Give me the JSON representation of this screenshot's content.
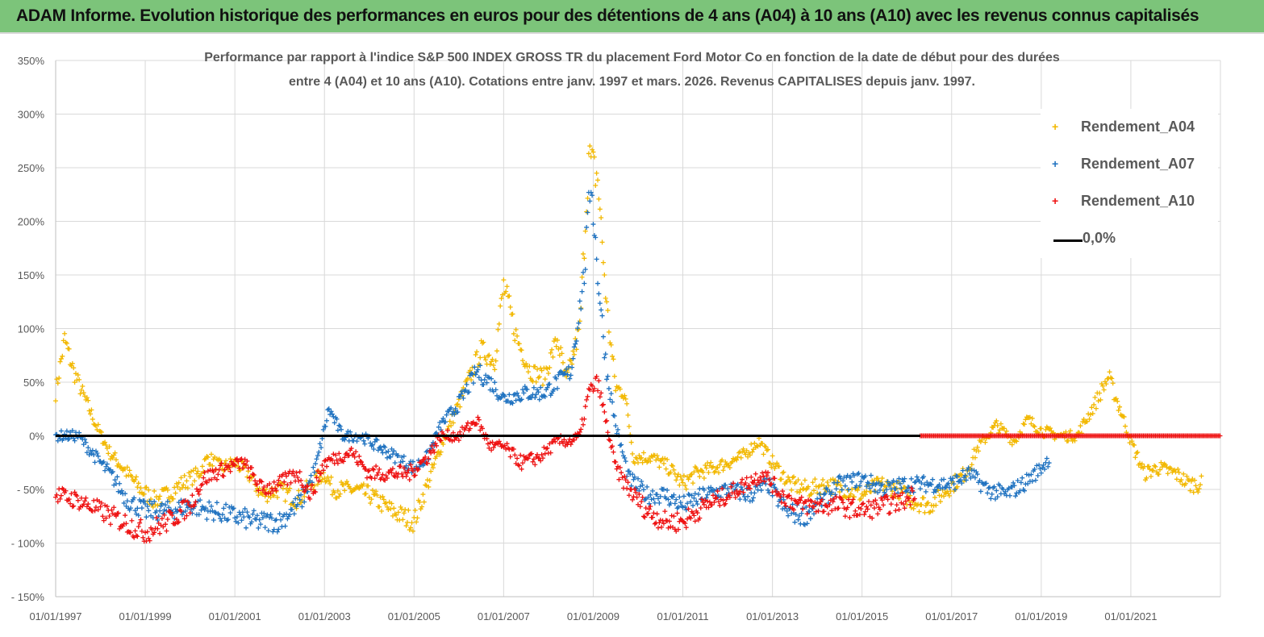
{
  "header": {
    "title": "ADAM Informe. Evolution historique des performances en euros pour des détentions de 4 ans (A04) à 10 ans (A10) avec les revenus connus capitalisés"
  },
  "chart_data": {
    "type": "scatter",
    "title_line1": "Performance par rapport à l'indice S&P 500 INDEX GROSS TR  du placement Ford Motor Co en fonction de la date de début pour des durées",
    "title_line2": "entre 4 (A04) et 10 ans (A10). Cotations entre janv. 1997 et mars. 2026. Revenus CAPITALISES depuis janv. 1997.",
    "xlabel": "",
    "ylabel": "",
    "xlim": [
      1997.0,
      2023.0
    ],
    "ylim": [
      -150,
      350
    ],
    "y_ticks": [
      350,
      300,
      250,
      200,
      150,
      100,
      50,
      0,
      -50,
      -100,
      -150
    ],
    "y_tick_labels": [
      "350%",
      "300%",
      "250%",
      "200%",
      "150%",
      "100%",
      "50%",
      "0%",
      "- 50%",
      "- 100%",
      "- 150%"
    ],
    "x_ticks": [
      1997,
      1999,
      2001,
      2003,
      2005,
      2007,
      2009,
      2011,
      2013,
      2015,
      2017,
      2019,
      2021
    ],
    "x_tick_labels": [
      "01/01/1997",
      "01/01/1999",
      "01/01/2001",
      "01/01/2003",
      "01/01/2005",
      "01/01/2007",
      "01/01/2009",
      "01/01/2011",
      "01/01/2013",
      "01/01/2015",
      "01/01/2017",
      "01/01/2019",
      "01/01/2021"
    ],
    "grid": true,
    "legend_position": "top-right",
    "reference_line": {
      "name": "0,0%",
      "value": 0,
      "color": "#000000"
    },
    "series": [
      {
        "name": "Rendement_A04",
        "color": "#f2b800",
        "segments": [
          [
            [
              1997.0,
              40
            ],
            [
              1997.2,
              90
            ],
            [
              1997.4,
              60
            ],
            [
              1997.6,
              40
            ],
            [
              1997.9,
              10
            ],
            [
              1998.2,
              -15
            ],
            [
              1998.5,
              -30
            ],
            [
              1998.9,
              -50
            ],
            [
              1999.2,
              -60
            ],
            [
              1999.5,
              -55
            ],
            [
              1999.8,
              -45
            ],
            [
              2000.2,
              -35
            ],
            [
              2000.4,
              -20
            ],
            [
              2000.7,
              -30
            ],
            [
              2001.0,
              -25
            ],
            [
              2001.3,
              -35
            ],
            [
              2001.6,
              -55
            ],
            [
              2002.0,
              -50
            ],
            [
              2002.4,
              -60
            ],
            [
              2002.7,
              -45
            ],
            [
              2003.0,
              -35
            ],
            [
              2003.2,
              -50
            ],
            [
              2003.7,
              -50
            ],
            [
              2004.0,
              -55
            ],
            [
              2004.5,
              -70
            ],
            [
              2005.0,
              -80
            ],
            [
              2005.3,
              -45
            ],
            [
              2005.6,
              -10
            ],
            [
              2005.9,
              20
            ],
            [
              2006.2,
              50
            ],
            [
              2006.5,
              80
            ],
            [
              2006.8,
              70
            ],
            [
              2007.0,
              140
            ],
            [
              2007.3,
              90
            ],
            [
              2007.6,
              60
            ],
            [
              2007.9,
              55
            ],
            [
              2008.2,
              90
            ],
            [
              2008.4,
              50
            ],
            [
              2008.7,
              100
            ],
            [
              2008.9,
              260
            ],
            [
              2009.1,
              240
            ],
            [
              2009.3,
              120
            ],
            [
              2009.5,
              45
            ],
            [
              2009.7,
              40
            ],
            [
              2009.9,
              -20
            ],
            [
              2010.3,
              -20
            ],
            [
              2010.7,
              -30
            ],
            [
              2011.0,
              -45
            ],
            [
              2011.3,
              -35
            ],
            [
              2011.7,
              -30
            ],
            [
              2012.0,
              -25
            ],
            [
              2012.3,
              -20
            ],
            [
              2012.7,
              -5
            ],
            [
              2013.0,
              -25
            ],
            [
              2013.4,
              -45
            ],
            [
              2013.8,
              -50
            ],
            [
              2014.2,
              -45
            ],
            [
              2014.6,
              -50
            ],
            [
              2015.0,
              -55
            ],
            [
              2015.4,
              -45
            ],
            [
              2015.8,
              -50
            ],
            [
              2016.1,
              -60
            ],
            [
              2016.5,
              -65
            ],
            [
              2016.9,
              -50
            ],
            [
              2017.3,
              -35
            ],
            [
              2017.6,
              -10
            ],
            [
              2018.0,
              10
            ],
            [
              2018.4,
              -5
            ],
            [
              2018.7,
              15
            ],
            [
              2019.0,
              5
            ],
            [
              2019.4,
              0
            ],
            [
              2019.8,
              0
            ],
            [
              2020.2,
              30
            ],
            [
              2020.5,
              55
            ],
            [
              2020.8,
              20
            ],
            [
              2021.0,
              -5
            ],
            [
              2021.3,
              -35
            ],
            [
              2021.6,
              -30
            ],
            [
              2022.0,
              -35
            ],
            [
              2022.3,
              -45
            ],
            [
              2022.6,
              -45
            ]
          ]
        ]
      },
      {
        "name": "Rendement_A07",
        "color": "#1f72c0",
        "segments": [
          [
            [
              1997.0,
              0
            ],
            [
              1997.5,
              0
            ],
            [
              1997.9,
              -20
            ],
            [
              1998.3,
              -40
            ],
            [
              1998.6,
              -60
            ],
            [
              1999.0,
              -70
            ],
            [
              1999.5,
              -70
            ],
            [
              2000.0,
              -65
            ],
            [
              2000.5,
              -70
            ],
            [
              2001.0,
              -75
            ],
            [
              2001.5,
              -80
            ],
            [
              2002.0,
              -80
            ],
            [
              2002.5,
              -60
            ],
            [
              2002.8,
              -30
            ],
            [
              2003.1,
              25
            ],
            [
              2003.4,
              0
            ],
            [
              2003.8,
              0
            ],
            [
              2004.2,
              -10
            ],
            [
              2004.6,
              -20
            ],
            [
              2005.0,
              -30
            ],
            [
              2005.3,
              -20
            ],
            [
              2005.6,
              10
            ],
            [
              2006.0,
              30
            ],
            [
              2006.4,
              60
            ],
            [
              2006.7,
              50
            ],
            [
              2007.0,
              35
            ],
            [
              2007.5,
              40
            ],
            [
              2007.9,
              40
            ],
            [
              2008.2,
              50
            ],
            [
              2008.5,
              60
            ],
            [
              2008.8,
              150
            ],
            [
              2008.95,
              240
            ],
            [
              2009.1,
              150
            ],
            [
              2009.3,
              60
            ],
            [
              2009.5,
              10
            ],
            [
              2009.8,
              -40
            ],
            [
              2010.2,
              -55
            ],
            [
              2010.6,
              -55
            ],
            [
              2011.0,
              -65
            ],
            [
              2011.5,
              -55
            ],
            [
              2012.0,
              -50
            ],
            [
              2012.5,
              -55
            ],
            [
              2012.9,
              -45
            ],
            [
              2013.3,
              -70
            ],
            [
              2013.7,
              -75
            ],
            [
              2014.0,
              -65
            ],
            [
              2014.5,
              -45
            ],
            [
              2015.0,
              -40
            ],
            [
              2015.5,
              -50
            ],
            [
              2016.0,
              -45
            ],
            [
              2016.5,
              -45
            ],
            [
              2017.0,
              -45
            ],
            [
              2017.4,
              -35
            ],
            [
              2017.8,
              -50
            ],
            [
              2018.2,
              -55
            ],
            [
              2018.6,
              -45
            ],
            [
              2019.0,
              -30
            ],
            [
              2019.2,
              -20
            ]
          ]
        ]
      },
      {
        "name": "Rendement_A10",
        "color": "#ee1111",
        "segments": [
          [
            [
              1997.0,
              -55
            ],
            [
              1997.5,
              -60
            ],
            [
              1998.0,
              -70
            ],
            [
              1998.5,
              -80
            ],
            [
              1999.0,
              -90
            ],
            [
              1999.5,
              -80
            ],
            [
              2000.0,
              -65
            ],
            [
              2000.3,
              -40
            ],
            [
              2000.8,
              -30
            ],
            [
              2001.2,
              -25
            ],
            [
              2001.6,
              -50
            ],
            [
              2002.0,
              -45
            ],
            [
              2002.4,
              -35
            ],
            [
              2002.7,
              -55
            ],
            [
              2003.0,
              -25
            ],
            [
              2003.3,
              -20
            ],
            [
              2003.6,
              -15
            ],
            [
              2004.0,
              -35
            ],
            [
              2004.5,
              -35
            ],
            [
              2004.9,
              -35
            ],
            [
              2005.3,
              -20
            ],
            [
              2005.6,
              0
            ],
            [
              2006.0,
              0
            ],
            [
              2006.4,
              15
            ],
            [
              2006.7,
              -10
            ],
            [
              2007.0,
              -10
            ],
            [
              2007.4,
              -25
            ],
            [
              2007.8,
              -20
            ],
            [
              2008.2,
              -5
            ],
            [
              2008.5,
              -5
            ],
            [
              2008.7,
              0
            ],
            [
              2008.9,
              40
            ],
            [
              2009.1,
              50
            ],
            [
              2009.3,
              10
            ],
            [
              2009.5,
              -30
            ],
            [
              2009.8,
              -50
            ],
            [
              2010.2,
              -70
            ],
            [
              2010.6,
              -80
            ],
            [
              2011.0,
              -80
            ],
            [
              2011.5,
              -65
            ],
            [
              2012.0,
              -55
            ],
            [
              2012.4,
              -45
            ],
            [
              2012.8,
              -35
            ],
            [
              2013.2,
              -55
            ],
            [
              2013.6,
              -65
            ],
            [
              2014.0,
              -65
            ],
            [
              2014.5,
              -65
            ],
            [
              2015.0,
              -70
            ],
            [
              2015.5,
              -65
            ],
            [
              2016.0,
              -60
            ],
            [
              2016.2,
              -50
            ]
          ],
          [
            [
              2016.3,
              0
            ],
            [
              2023.0,
              0
            ]
          ]
        ]
      }
    ]
  }
}
